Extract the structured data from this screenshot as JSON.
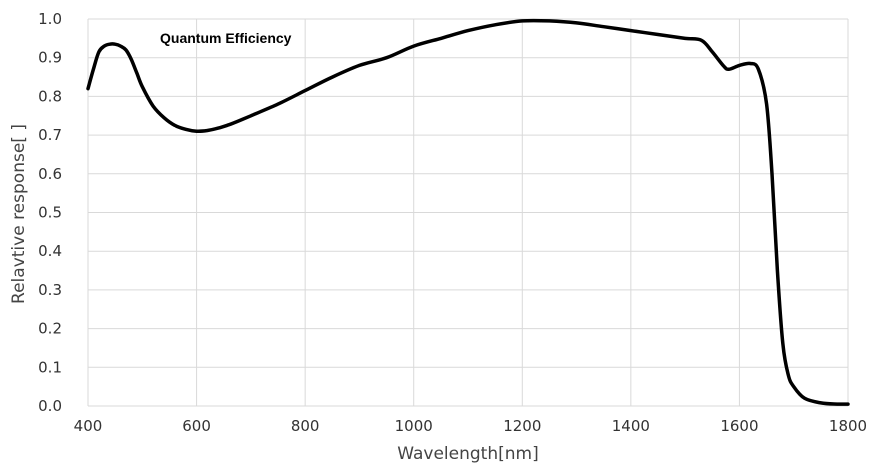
{
  "chart_data": {
    "type": "line",
    "title": "Quantum Efficiency",
    "xlabel": "Wavelength[nm]",
    "ylabel": "Relavtive response[ ]",
    "xlim": [
      400,
      1800
    ],
    "ylim": [
      0.0,
      1.0
    ],
    "grid": true,
    "x_ticks": [
      "400",
      "600",
      "800",
      "1000",
      "1200",
      "1400",
      "1600",
      "1800"
    ],
    "y_ticks": [
      "0.0",
      "0.1",
      "0.2",
      "0.3",
      "0.4",
      "0.5",
      "0.6",
      "0.7",
      "0.8",
      "0.9",
      "1.0"
    ],
    "line_color": "#000000",
    "grid_color": "#d9d9d9",
    "series": [
      {
        "x": [
          400,
          410,
          420,
          430,
          440,
          450,
          460,
          470,
          480,
          490,
          500,
          520,
          540,
          560,
          580,
          600,
          620,
          640,
          660,
          680,
          700,
          750,
          800,
          850,
          900,
          950,
          1000,
          1050,
          1100,
          1150,
          1200,
          1250,
          1300,
          1350,
          1400,
          1450,
          1500,
          1530,
          1550,
          1570,
          1580,
          1600,
          1620,
          1635,
          1650,
          1660,
          1670,
          1680,
          1690,
          1700,
          1720,
          1750,
          1780,
          1800
        ],
        "y": [
          0.82,
          0.87,
          0.915,
          0.93,
          0.935,
          0.935,
          0.93,
          0.92,
          0.895,
          0.86,
          0.825,
          0.775,
          0.745,
          0.725,
          0.715,
          0.71,
          0.712,
          0.718,
          0.727,
          0.738,
          0.75,
          0.78,
          0.815,
          0.85,
          0.88,
          0.9,
          0.93,
          0.95,
          0.97,
          0.985,
          0.995,
          0.995,
          0.99,
          0.98,
          0.97,
          0.96,
          0.95,
          0.945,
          0.915,
          0.88,
          0.87,
          0.88,
          0.885,
          0.87,
          0.78,
          0.6,
          0.35,
          0.16,
          0.08,
          0.05,
          0.02,
          0.008,
          0.005,
          0.005
        ]
      }
    ]
  }
}
